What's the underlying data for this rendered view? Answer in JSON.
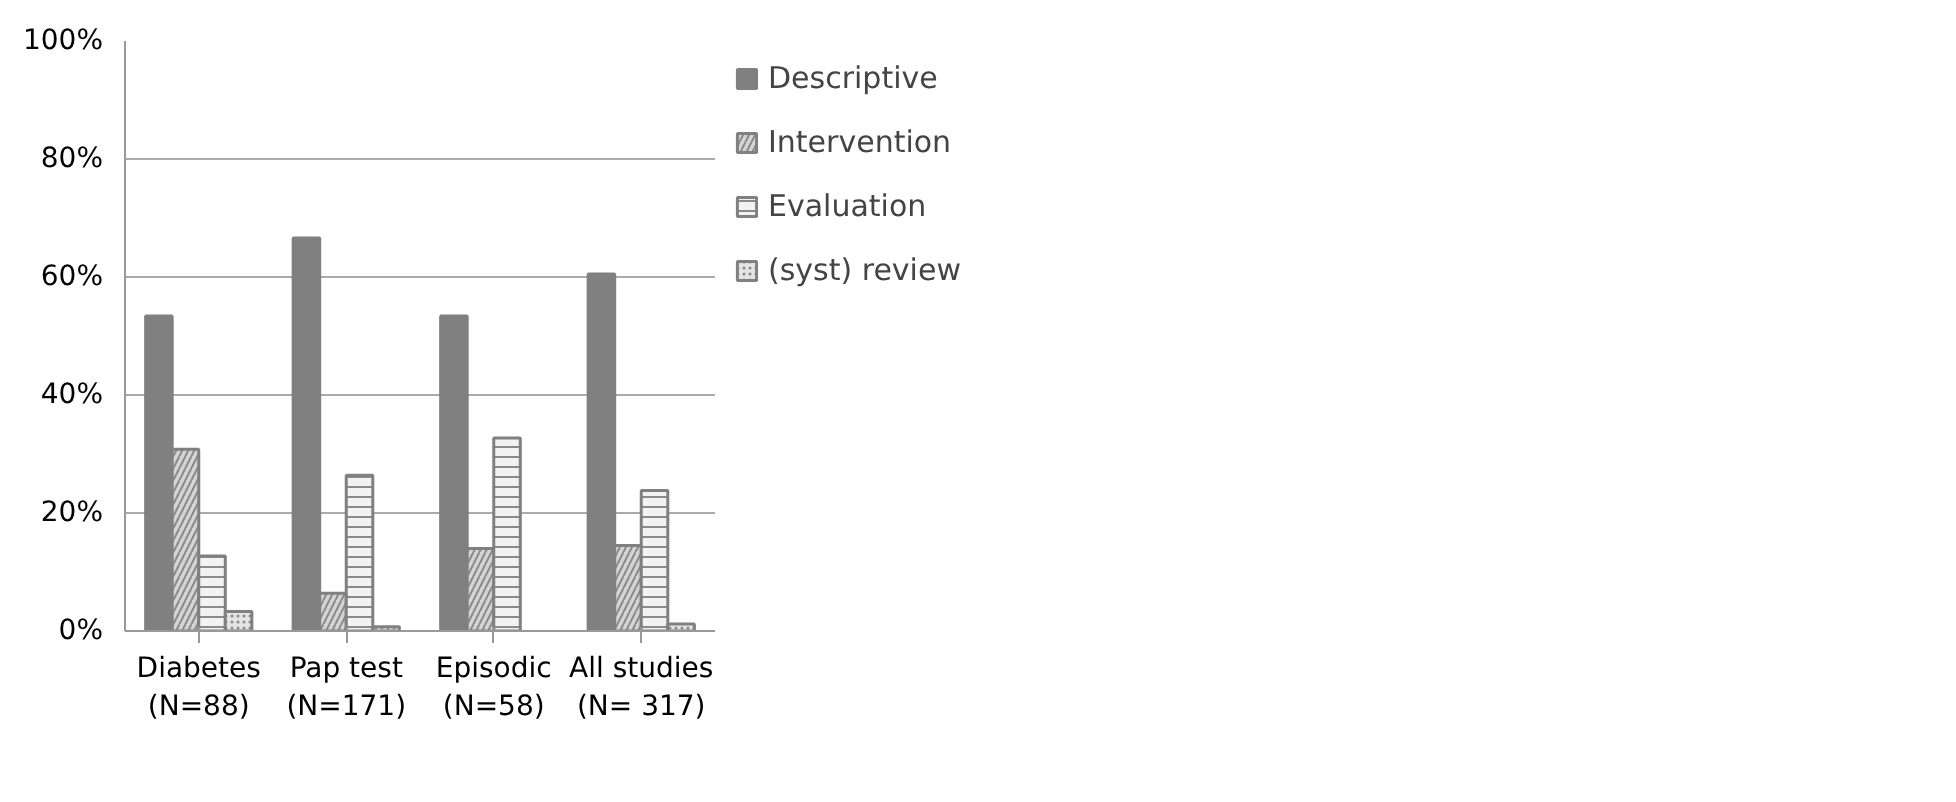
{
  "chart_data": {
    "type": "bar",
    "categories": [
      "Diabetes\n(N=88)",
      "Pap test\n(N=171)",
      "Episodic\n(N=58)",
      "All studies\n(N= 317)"
    ],
    "series": [
      {
        "name": "Descriptive",
        "color": "#808080",
        "values": [
          53.4,
          66.6,
          53.4,
          60.5
        ]
      },
      {
        "name": "Intervention",
        "color": "#d4d4d4",
        "values": [
          30.8,
          6.4,
          14.0,
          14.5
        ]
      },
      {
        "name": "Evaluation",
        "color": "#f2f2f2",
        "values": [
          12.7,
          26.4,
          32.7,
          23.8
        ]
      },
      {
        "name": "(syst) review",
        "color": "#e4e4e4",
        "values": [
          3.3,
          0.7,
          0,
          1.2
        ]
      }
    ],
    "ylim": [
      0,
      100
    ],
    "yticks": [
      {
        "value": 0,
        "label": "0%"
      },
      {
        "value": 20,
        "label": "20%"
      },
      {
        "value": 40,
        "label": "40%"
      },
      {
        "value": 60,
        "label": "60%"
      },
      {
        "value": 80,
        "label": "80%"
      },
      {
        "value": 100,
        "label": "100%"
      }
    ],
    "grid": "y",
    "legend": "right"
  }
}
